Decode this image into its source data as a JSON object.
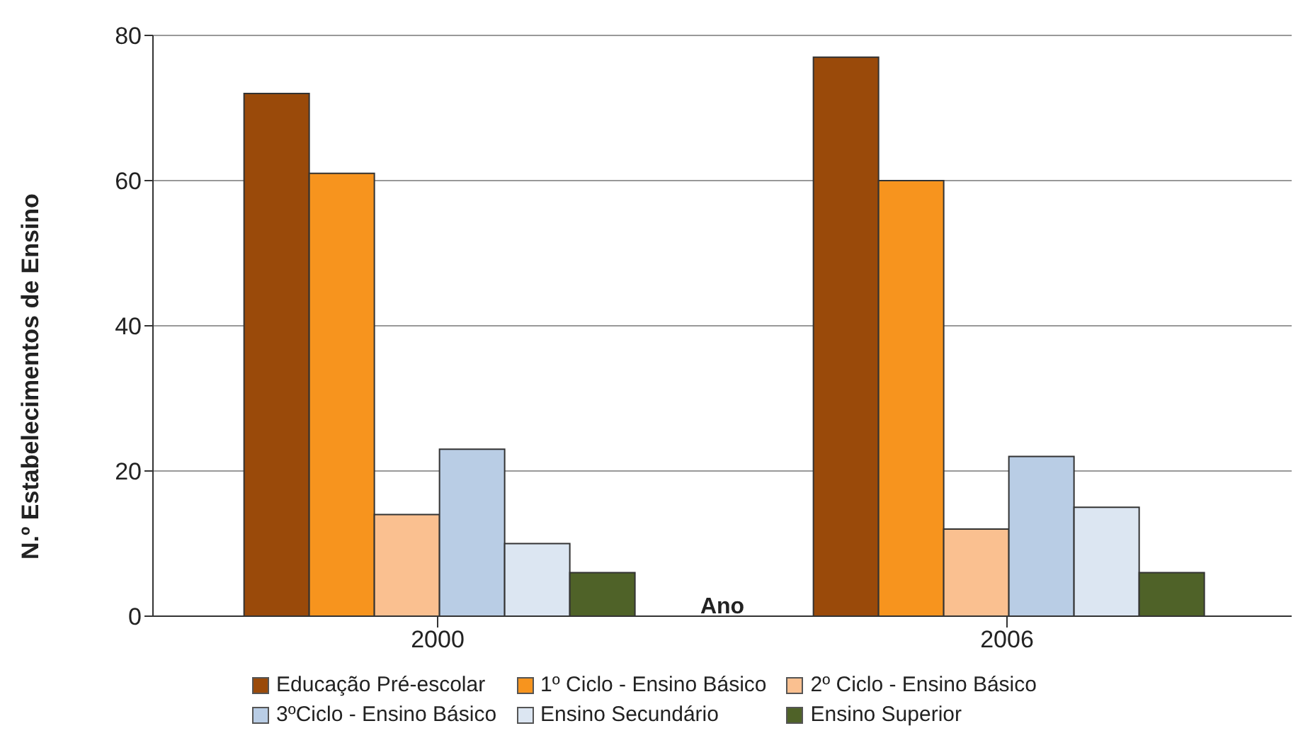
{
  "chart_data": {
    "type": "bar",
    "xlabel": "Ano",
    "ylabel": "N.º Estabelecimentos de Ensino",
    "categories": [
      "2000",
      "2006"
    ],
    "series": [
      {
        "name": "Educação Pré-escolar",
        "color": "#9a4a0a",
        "values": [
          72,
          77
        ]
      },
      {
        "name": "1º Ciclo - Ensino Básico",
        "color": "#f7941e",
        "values": [
          61,
          60
        ]
      },
      {
        "name": "2º Ciclo - Ensino Básico",
        "color": "#fac090",
        "values": [
          14,
          12
        ]
      },
      {
        "name": "3ºCiclo - Ensino Básico",
        "color": "#b9cde5",
        "values": [
          23,
          22
        ]
      },
      {
        "name": "Ensino Secundário",
        "color": "#dce6f2",
        "values": [
          10,
          15
        ]
      },
      {
        "name": "Ensino Superior",
        "color": "#4f6228",
        "values": [
          6,
          6
        ]
      }
    ],
    "ylim": [
      0,
      80
    ],
    "yticks": [
      0,
      20,
      40,
      60,
      80
    ],
    "grid": "y",
    "legend": "bottom"
  }
}
